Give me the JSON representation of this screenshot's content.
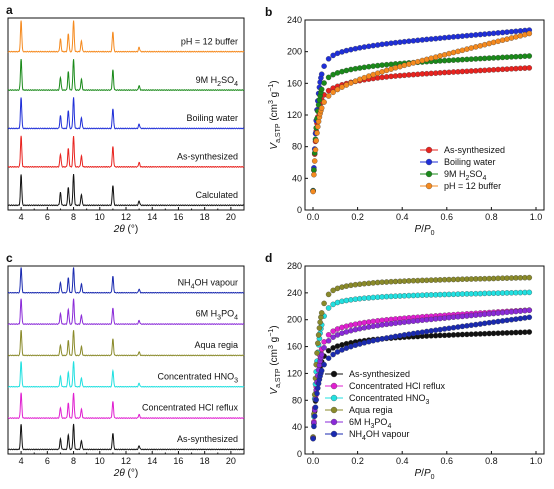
{
  "chart_data": [
    {
      "panel": "a",
      "type": "line",
      "xlabel_parts": [
        "2",
        "θ",
        " (°)"
      ],
      "ylabel": "",
      "xlim": [
        3,
        21
      ],
      "xticks": [
        4,
        6,
        8,
        10,
        12,
        14,
        16,
        18,
        20
      ],
      "peaks": [
        4.0,
        7.0,
        7.6,
        8.0,
        8.6,
        11.0,
        13.0
      ],
      "peak_heights": [
        0.85,
        0.35,
        0.5,
        0.85,
        0.3,
        0.55,
        0.12
      ],
      "series": [
        {
          "name": "Calculated",
          "color": "#111111"
        },
        {
          "name": "As-synthesized",
          "color": "#e8231f"
        },
        {
          "name": "Boiling water",
          "color": "#1f2fd8"
        },
        {
          "name": "9M H2SO4",
          "label_parts": [
            "9M H",
            "2",
            "SO",
            "4"
          ],
          "color": "#1a8a1a"
        },
        {
          "name": "pH = 12 buffer",
          "color": "#f58a1f"
        }
      ]
    },
    {
      "panel": "b",
      "type": "scatter",
      "xlabel_parts": [
        "P",
        "/",
        "P",
        "0"
      ],
      "ylabel_parts": [
        "V",
        "a,STP",
        " (cm",
        "3",
        " g",
        "−1",
        ")"
      ],
      "xlim": [
        0,
        1.0
      ],
      "ylim": [
        0,
        240
      ],
      "xticks": [
        0.0,
        0.2,
        0.4,
        0.6,
        0.8,
        1.0
      ],
      "yticks": [
        0,
        40,
        80,
        120,
        160,
        200,
        240
      ],
      "legend_position": "bottom-right",
      "series": [
        {
          "name": "As-synthesized",
          "color": "#e8231f",
          "y0": 20,
          "A": 120,
          "k": 70,
          "B": 25,
          "slope": 15
        },
        {
          "name": "Boiling water",
          "color": "#1f2fd8",
          "y0": 20,
          "A": 165,
          "k": 55,
          "B": 18,
          "slope": 25
        },
        {
          "name": "9M H2SO4",
          "label_parts": [
            "9M H",
            "2",
            "SO",
            "4"
          ],
          "color": "#1a8a1a",
          "y0": 20,
          "A": 140,
          "k": 60,
          "B": 20,
          "slope": 15
        },
        {
          "name": "pH = 12 buffer",
          "color": "#f58a1f",
          "y0": 20,
          "A": 110,
          "k": 60,
          "B": 25,
          "slope": 70
        }
      ]
    },
    {
      "panel": "c",
      "type": "line",
      "xlabel_parts": [
        "2",
        "θ",
        " (°)"
      ],
      "ylabel": "",
      "xlim": [
        3,
        21
      ],
      "xticks": [
        4,
        6,
        8,
        10,
        12,
        14,
        16,
        18,
        20
      ],
      "peaks": [
        4.0,
        7.0,
        7.6,
        8.0,
        8.6,
        11.0,
        13.0
      ],
      "peak_heights": [
        0.85,
        0.35,
        0.5,
        0.85,
        0.3,
        0.55,
        0.12
      ],
      "series": [
        {
          "name": "As-synthesized",
          "color": "#111111"
        },
        {
          "name": "Concentrated HCl reflux",
          "color": "#e020d0"
        },
        {
          "name": "Concentrated HNO3",
          "label_parts": [
            "Concentrated HNO",
            "3"
          ],
          "color": "#22e0e0"
        },
        {
          "name": "Aqua regia",
          "color": "#8a8a2a"
        },
        {
          "name": "6M H3PO4",
          "label_parts": [
            "6M H",
            "3",
            "PO",
            "4"
          ],
          "color": "#8a2ad8"
        },
        {
          "name": "NH4OH vapour",
          "label_parts": [
            "NH",
            "4",
            "OH vapour"
          ],
          "color": "#1a2ab0"
        }
      ]
    },
    {
      "panel": "d",
      "type": "scatter",
      "xlabel_parts": [
        "P",
        "/",
        "P",
        "0"
      ],
      "ylabel_parts": [
        "V",
        "a,STP",
        " (cm",
        "3",
        " g",
        "−1",
        ")"
      ],
      "xlim": [
        0,
        1.0
      ],
      "ylim": [
        0,
        280
      ],
      "xticks": [
        0.0,
        0.2,
        0.4,
        0.6,
        0.8,
        1.0
      ],
      "yticks": [
        0,
        40,
        80,
        120,
        160,
        200,
        240,
        280
      ],
      "legend_position": "bottom-center",
      "series": [
        {
          "name": "As-synthesized",
          "color": "#111111",
          "y0": 20,
          "A": 125,
          "k": 55,
          "B": 25,
          "slope": 12
        },
        {
          "name": "Concentrated HCl reflux",
          "color": "#e020d0",
          "y0": 20,
          "A": 150,
          "k": 50,
          "B": 25,
          "slope": 20
        },
        {
          "name": "Concentrated HNO3",
          "label_parts": [
            "Concentrated HNO",
            "3"
          ],
          "color": "#22e0e0",
          "y0": 20,
          "A": 195,
          "k": 50,
          "B": 18,
          "slope": 8
        },
        {
          "name": "Aqua regia",
          "color": "#8a8a2a",
          "y0": 20,
          "A": 215,
          "k": 50,
          "B": 20,
          "slope": 8
        },
        {
          "name": "6M H3PO4",
          "label_parts": [
            "6M H",
            "3",
            "PO",
            "4"
          ],
          "color": "#8a2ad8",
          "y0": 20,
          "A": 140,
          "k": 50,
          "B": 25,
          "slope": 30
        },
        {
          "name": "NH4OH vapour",
          "label_parts": [
            "NH",
            "4",
            "OH vapour"
          ],
          "color": "#1a2ab0",
          "y0": 20,
          "A": 110,
          "k": 50,
          "B": 30,
          "slope": 45
        }
      ]
    }
  ]
}
